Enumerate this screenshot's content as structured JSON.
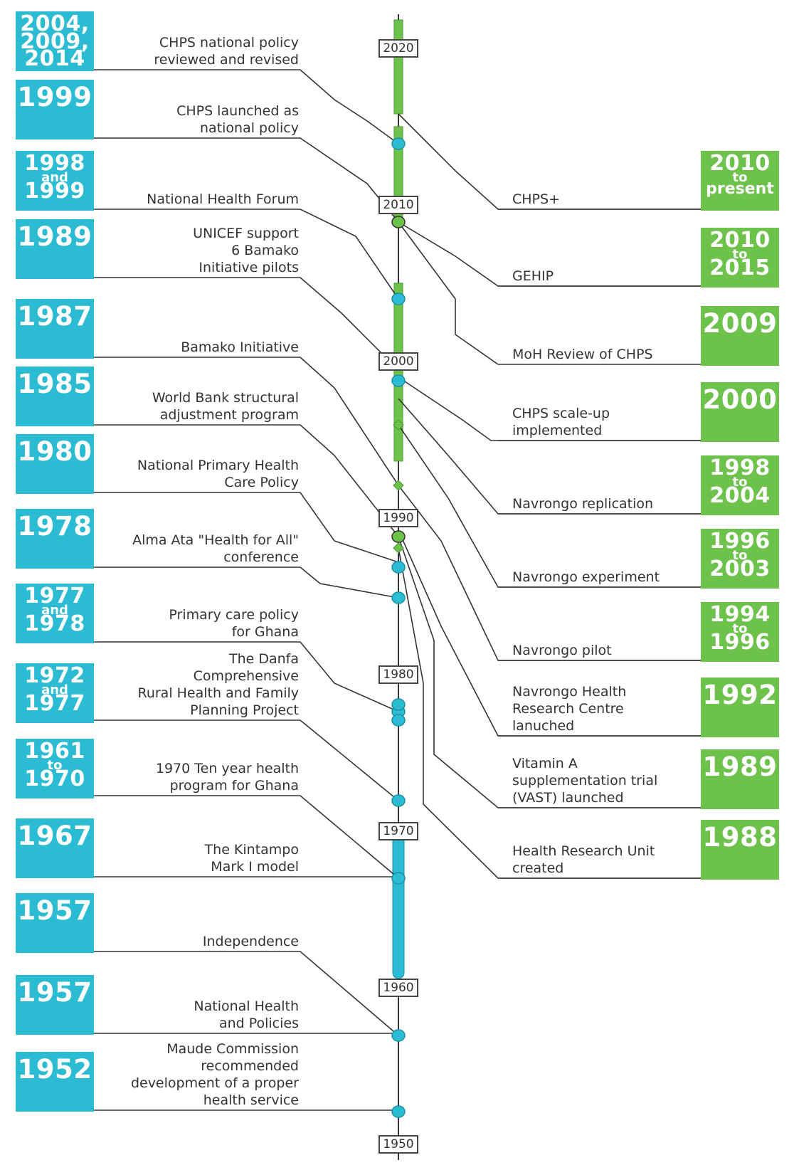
{
  "colors": {
    "left_accent": "#2bbcd4",
    "right_accent": "#6cc24a",
    "line": "#333333",
    "text": "#333333"
  },
  "decades": [
    "2020",
    "2010",
    "2000",
    "1990",
    "1980",
    "1970",
    "1960",
    "1950"
  ],
  "left_events": [
    {
      "year_lines": [
        "2004,",
        "2009,",
        "2014"
      ],
      "label_lines": [
        "CHPS national policy",
        "reviewed and revised"
      ]
    },
    {
      "year_lines": [
        "1999"
      ],
      "label_lines": [
        "CHPS launched as",
        "national policy"
      ]
    },
    {
      "year_lines": [
        "1998",
        "and",
        "1999"
      ],
      "label_lines": [
        "National Health Forum"
      ]
    },
    {
      "year_lines": [
        "1989"
      ],
      "label_lines": [
        "UNICEF support",
        "6 Bamako",
        "Initiative pilots"
      ]
    },
    {
      "year_lines": [
        "1987"
      ],
      "label_lines": [
        "Bamako Initiative"
      ]
    },
    {
      "year_lines": [
        "1985"
      ],
      "label_lines": [
        "World Bank structural",
        "adjustment program"
      ]
    },
    {
      "year_lines": [
        "1980"
      ],
      "label_lines": [
        "National Primary Health",
        "Care Policy"
      ]
    },
    {
      "year_lines": [
        "1978"
      ],
      "label_lines": [
        "Alma Ata \"Health for All\"",
        "conference"
      ]
    },
    {
      "year_lines": [
        "1977",
        "and",
        "1978"
      ],
      "label_lines": [
        "Primary care policy",
        "for Ghana"
      ]
    },
    {
      "year_lines": [
        "1972",
        "and",
        "1977"
      ],
      "label_lines": [
        "The Danfa",
        "Comprehensive",
        "Rural Health and Family",
        "Planning Project"
      ]
    },
    {
      "year_lines": [
        "1961",
        "to",
        "1970"
      ],
      "label_lines": [
        "1970 Ten year health",
        "program for Ghana"
      ]
    },
    {
      "year_lines": [
        "1967"
      ],
      "label_lines": [
        "The Kintampo",
        "Mark I model"
      ]
    },
    {
      "year_lines": [
        "1957"
      ],
      "label_lines": [
        "Independence"
      ]
    },
    {
      "year_lines": [
        "1957"
      ],
      "label_lines": [
        "National Health",
        "and Policies"
      ]
    },
    {
      "year_lines": [
        "1952"
      ],
      "label_lines": [
        "Maude Commission",
        "recommended",
        "development of a proper",
        "health service"
      ]
    }
  ],
  "right_events": [
    {
      "year_lines": [
        "2010",
        "to",
        "present"
      ],
      "label_lines": [
        "CHPS+"
      ]
    },
    {
      "year_lines": [
        "2010",
        "to",
        "2015"
      ],
      "label_lines": [
        "GEHIP"
      ]
    },
    {
      "year_lines": [
        "2009"
      ],
      "label_lines": [
        "MoH Review of CHPS"
      ]
    },
    {
      "year_lines": [
        "2000"
      ],
      "label_lines": [
        "CHPS scale-up",
        "implemented"
      ]
    },
    {
      "year_lines": [
        "1998",
        "to",
        "2004"
      ],
      "label_lines": [
        "Navrongo replication"
      ]
    },
    {
      "year_lines": [
        "1996",
        "to",
        "2003"
      ],
      "label_lines": [
        "Navrongo experiment"
      ]
    },
    {
      "year_lines": [
        "1994",
        "to",
        "1996"
      ],
      "label_lines": [
        "Navrongo pilot"
      ]
    },
    {
      "year_lines": [
        "1992"
      ],
      "label_lines": [
        "Navrongo Health",
        "Research Centre",
        "lanuched"
      ]
    },
    {
      "year_lines": [
        "1989"
      ],
      "label_lines": [
        "Vitamin A",
        "supplementation trial",
        "(VAST) launched"
      ]
    },
    {
      "year_lines": [
        "1988"
      ],
      "label_lines": [
        "Health Research Unit",
        "created"
      ]
    }
  ]
}
